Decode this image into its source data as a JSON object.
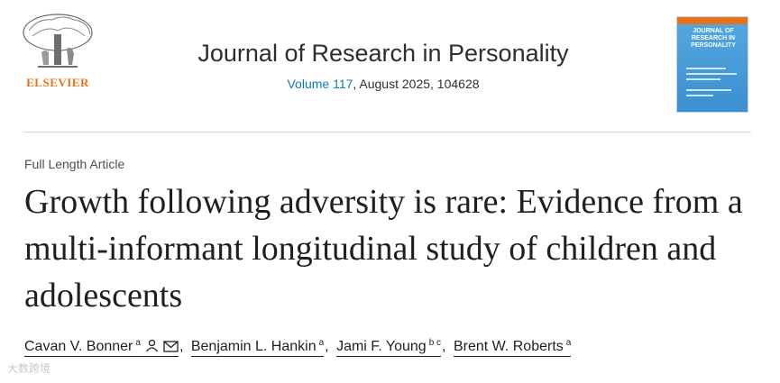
{
  "publisher": {
    "name": "ELSEVIER"
  },
  "journal": {
    "name": "Journal of Research in Personality",
    "volume_label": "Volume 117",
    "issue_info": ", August 2025, 104628",
    "cover_title": "JOURNAL OF RESEARCH IN PERSONALITY"
  },
  "article": {
    "type": "Full Length Article",
    "title": "Growth following adversity is rare: Evidence from a multi-informant longitudinal study of children and adolescents"
  },
  "authors": [
    {
      "name": "Cavan V. Bonner",
      "affil": "a"
    },
    {
      "name": "Benjamin L. Hankin",
      "affil": "a"
    },
    {
      "name": "Jami F. Young",
      "affil": "b c"
    },
    {
      "name": "Brent W. Roberts",
      "affil": "a"
    }
  ],
  "separator": ",",
  "watermark": "大数跨境",
  "colors": {
    "accent": "#0c7dbb",
    "publisher": "#e9711c"
  }
}
